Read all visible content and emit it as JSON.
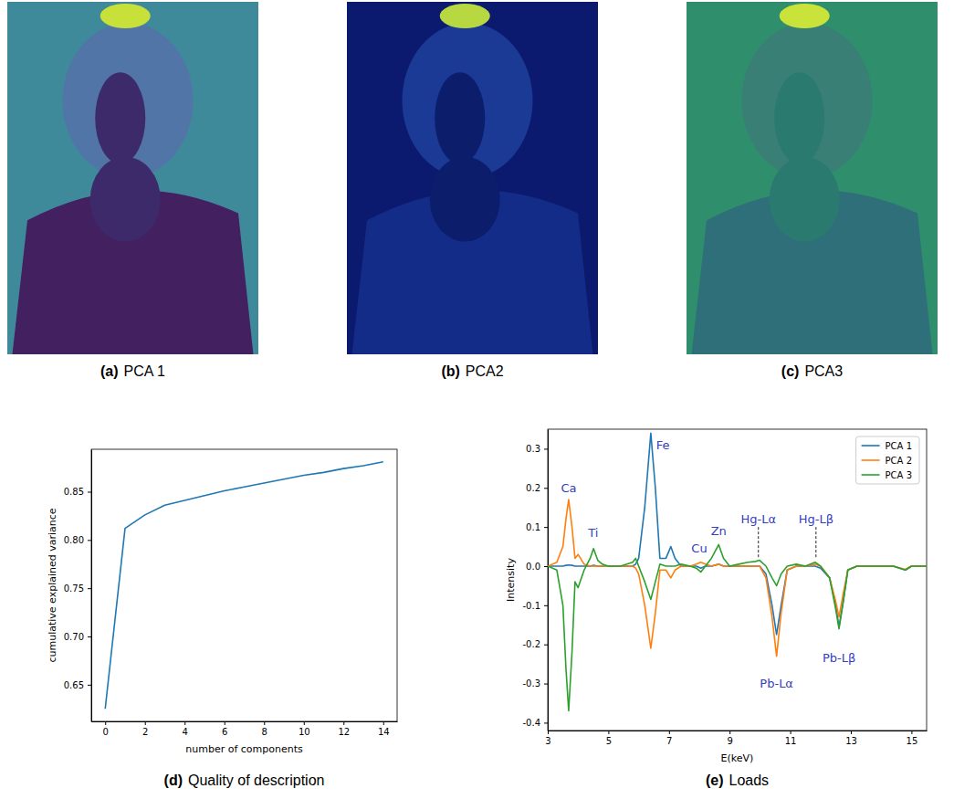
{
  "images": [
    {
      "panel": "(a)",
      "title": "PCA 1"
    },
    {
      "panel": "(b)",
      "title": "PCA2"
    },
    {
      "panel": "(c)",
      "title": "PCA3"
    }
  ],
  "chart_data": [
    {
      "type": "line",
      "panel": "(d)",
      "title": "Quality of description",
      "x_label": "number of components",
      "y_label": "cumulative explained variance",
      "x": [
        0,
        1,
        2,
        3,
        4,
        5,
        6,
        7,
        8,
        9,
        10,
        11,
        12,
        13,
        14
      ],
      "values": [
        0.625,
        0.812,
        0.826,
        0.836,
        0.841,
        0.846,
        0.851,
        0.855,
        0.859,
        0.863,
        0.867,
        0.87,
        0.874,
        0.877,
        0.881
      ],
      "color": "#1f77b4",
      "xlim": [
        -0.7,
        14.7
      ],
      "ylim": [
        0.612,
        0.894
      ],
      "xticks": [
        0,
        2,
        4,
        6,
        8,
        10,
        12,
        14
      ],
      "yticks": [
        0.65,
        {
          "value": 0.7,
          "label": "0.70"
        },
        0.75,
        {
          "value": 0.8,
          "label": "0.80"
        },
        0.85
      ]
    },
    {
      "type": "line",
      "panel": "(e)",
      "title": "Loads",
      "x_label": "E(keV)",
      "y_label": "Intensity",
      "x": [
        3.0,
        3.3,
        3.5,
        3.6,
        3.69,
        3.8,
        3.9,
        4.0,
        4.2,
        4.4,
        4.51,
        4.65,
        4.8,
        5.0,
        5.4,
        5.8,
        5.9,
        6.0,
        6.2,
        6.4,
        6.55,
        6.7,
        6.9,
        7.06,
        7.2,
        7.4,
        7.7,
        7.9,
        8.05,
        8.2,
        8.4,
        8.64,
        8.8,
        9.0,
        9.3,
        9.6,
        9.85,
        9.99,
        10.2,
        10.4,
        10.55,
        10.7,
        10.9,
        11.2,
        11.5,
        11.82,
        12.0,
        12.3,
        12.5,
        12.61,
        12.75,
        12.9,
        13.2,
        13.6,
        14.0,
        14.4,
        14.8,
        15.0,
        15.2,
        15.5
      ],
      "series": [
        {
          "name": "PCA 1",
          "color": "#1f77b4",
          "values": [
            0.0,
            0.0,
            0.0,
            0.002,
            0.003,
            0.002,
            0.0,
            0.0,
            0.0,
            0.0,
            0.002,
            0.0,
            0.0,
            0.0,
            0.0,
            0.0,
            0.005,
            0.02,
            0.15,
            0.34,
            0.2,
            0.02,
            0.02,
            0.05,
            0.02,
            0.0,
            0.0,
            0.0,
            -0.005,
            0.0,
            0.0,
            0.005,
            0.0,
            0.0,
            0.0,
            0.0,
            0.0,
            0.0,
            -0.02,
            -0.1,
            -0.175,
            -0.1,
            -0.01,
            0.0,
            0.0,
            0.0,
            -0.005,
            -0.03,
            -0.1,
            -0.155,
            -0.09,
            -0.01,
            0.0,
            0.0,
            0.0,
            0.0,
            -0.01,
            0.0,
            0.0,
            0.0
          ]
        },
        {
          "name": "PCA 2",
          "color": "#ff7f0e",
          "values": [
            0.0,
            0.01,
            0.05,
            0.12,
            0.17,
            0.1,
            0.02,
            0.03,
            0.005,
            0.0,
            0.0,
            0.0,
            0.0,
            0.0,
            0.0,
            0.0,
            -0.005,
            -0.02,
            -0.1,
            -0.21,
            -0.12,
            -0.01,
            -0.01,
            -0.03,
            -0.01,
            0.0,
            0.0,
            0.005,
            0.01,
            0.005,
            0.0,
            0.005,
            0.0,
            0.0,
            0.0,
            0.0,
            0.0,
            0.0,
            -0.03,
            -0.13,
            -0.23,
            -0.12,
            -0.01,
            0.0,
            0.0,
            0.005,
            0.0,
            -0.03,
            -0.09,
            -0.13,
            -0.07,
            -0.01,
            0.0,
            0.0,
            0.0,
            0.0,
            -0.008,
            0.0,
            0.0,
            0.0
          ]
        },
        {
          "name": "PCA 3",
          "color": "#2ca02c",
          "values": [
            0.0,
            -0.01,
            -0.1,
            -0.26,
            -0.37,
            -0.22,
            -0.04,
            -0.055,
            -0.01,
            0.02,
            0.045,
            0.015,
            0.005,
            0.0,
            0.0,
            0.01,
            0.02,
            0.0,
            -0.04,
            -0.085,
            -0.04,
            0.005,
            0.0,
            0.0,
            0.0,
            0.005,
            0.0,
            -0.005,
            -0.015,
            0.0,
            0.02,
            0.055,
            0.02,
            0.0,
            0.005,
            0.01,
            0.012,
            0.015,
            0.0,
            -0.03,
            -0.05,
            -0.02,
            0.0,
            0.005,
            0.0,
            0.01,
            0.0,
            -0.03,
            -0.11,
            -0.16,
            -0.09,
            -0.01,
            0.0,
            0.0,
            0.0,
            0.0,
            -0.01,
            0.0,
            0.0,
            0.0
          ]
        }
      ],
      "xlim": [
        3,
        15.5
      ],
      "ylim": [
        -0.42,
        0.35
      ],
      "xticks": [
        3,
        5,
        7,
        9,
        11,
        13,
        15
      ],
      "yticks": [
        -0.4,
        -0.3,
        -0.2,
        -0.1,
        {
          "value": 0,
          "label": "0.0"
        },
        0.1,
        0.2,
        0.3
      ],
      "legend": "upper right",
      "annotations": [
        {
          "text": "Ca",
          "x": 3.69,
          "y": 0.2
        },
        {
          "text": "Ti",
          "x": 4.5,
          "y": 0.085
        },
        {
          "text": "Fe",
          "x": 6.8,
          "y": 0.31
        },
        {
          "text": "Cu",
          "x": 8.0,
          "y": 0.045
        },
        {
          "text": "Zn",
          "x": 8.64,
          "y": 0.09
        },
        {
          "text": "Hg-Lα",
          "x": 9.95,
          "y": 0.12,
          "line": [
            0.1,
            0.02
          ],
          "line_style": "dashed"
        },
        {
          "text": "Hg-Lβ",
          "x": 11.85,
          "y": 0.12,
          "line": [
            0.1,
            0.02
          ],
          "line_style": "dashed"
        },
        {
          "text": "Pb-Lα",
          "x": 10.55,
          "y": -0.3
        },
        {
          "text": "Pb-Lβ",
          "x": 12.61,
          "y": -0.235
        }
      ]
    }
  ]
}
